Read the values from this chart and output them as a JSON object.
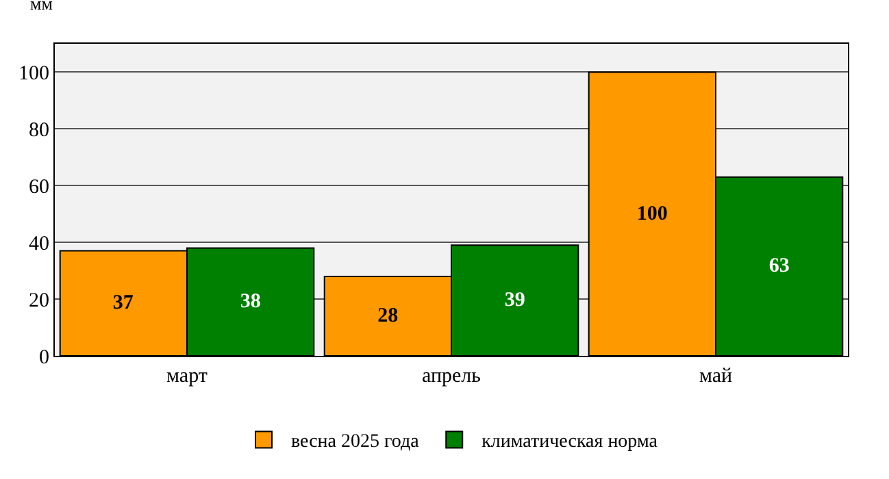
{
  "chart_data": {
    "type": "bar",
    "ylabel": "мм",
    "categories": [
      "март",
      "апрель",
      "май"
    ],
    "series": [
      {
        "name": "весна 2025 года",
        "color": "#ff9900",
        "values": [
          37,
          28,
          100
        ]
      },
      {
        "name": "климатическая норма",
        "color": "#008000",
        "values": [
          38,
          39,
          63
        ]
      }
    ],
    "ylim": [
      0,
      110
    ],
    "yticks": [
      0,
      20,
      40,
      60,
      80,
      100
    ],
    "grid": "y",
    "legend": "bottom",
    "data_labels": true
  }
}
